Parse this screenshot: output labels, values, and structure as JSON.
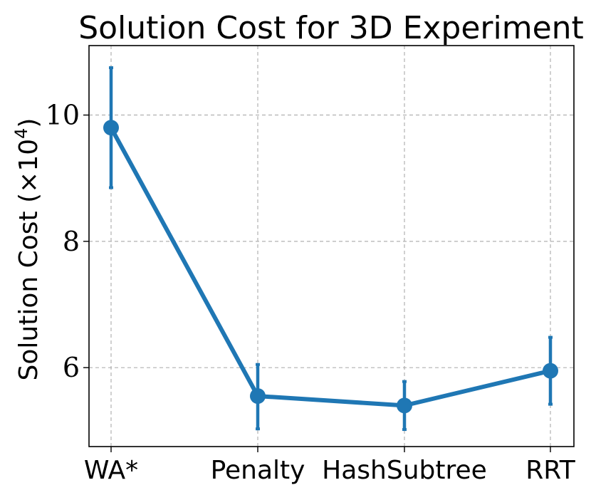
{
  "chart_data": {
    "type": "line",
    "title": "Solution Cost for 3D Experiment",
    "ylabel_text": "Solution Cost (×10",
    "ylabel_exp": "4",
    "ylabel_close": ")",
    "xlabel": "",
    "categories": [
      "WA*",
      "Penalty",
      "HashSubtree",
      "RRT"
    ],
    "series": [
      {
        "values": [
          9.8,
          5.55,
          5.4,
          5.95
        ],
        "err_low": [
          8.85,
          5.03,
          5.02,
          5.42
        ],
        "err_high": [
          10.75,
          6.05,
          5.78,
          6.48
        ],
        "color": "#1f77b4"
      }
    ],
    "yticks": [
      6,
      8,
      10
    ],
    "ylim": [
      4.75,
      11.1
    ],
    "grid": true
  }
}
